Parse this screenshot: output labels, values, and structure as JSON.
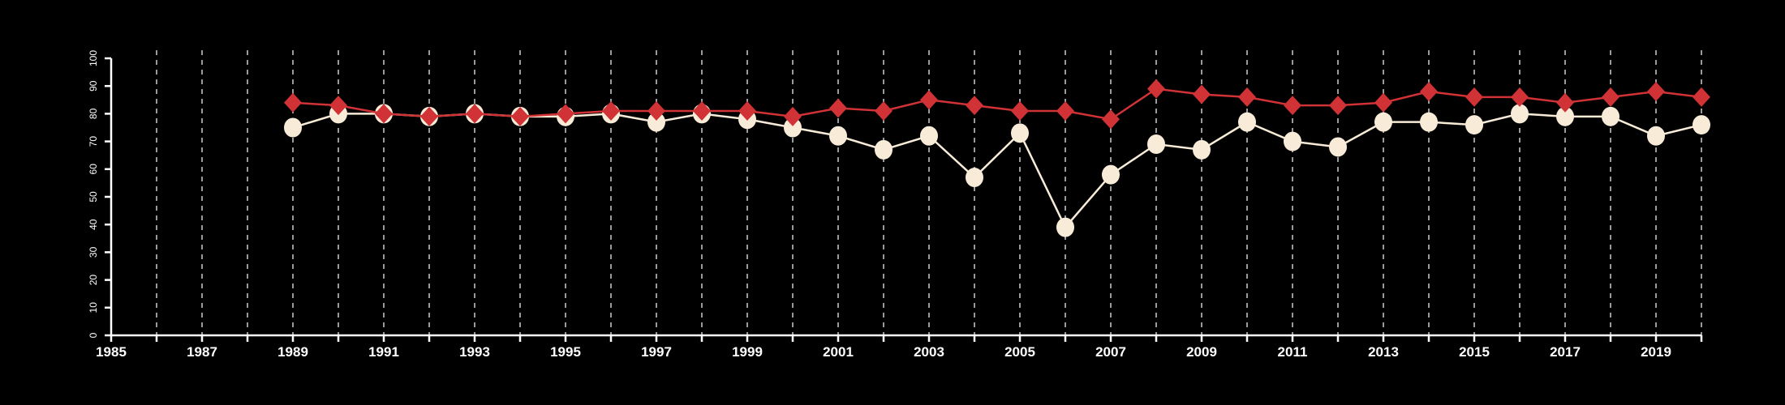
{
  "chart_data": {
    "type": "line",
    "title": "",
    "xlabel": "",
    "ylabel": "",
    "xlim": [
      1985,
      2020
    ],
    "ylim": [
      0,
      100
    ],
    "x_ticks": [
      1985,
      1986,
      1987,
      1988,
      1989,
      1990,
      1991,
      1992,
      1993,
      1994,
      1995,
      1996,
      1997,
      1998,
      1999,
      2000,
      2001,
      2002,
      2003,
      2004,
      2005,
      2006,
      2007,
      2008,
      2009,
      2010,
      2011,
      2012,
      2013,
      2014,
      2015,
      2016,
      2017,
      2018,
      2019,
      2020
    ],
    "x_tick_labels": [
      "1985",
      "1987",
      "1989",
      "1991",
      "1993",
      "1995",
      "1997",
      "1999",
      "2001",
      "2003",
      "2005",
      "2007",
      "2009",
      "2011",
      "2013",
      "2015",
      "2017",
      "2019"
    ],
    "y_tick_labels": [
      "0",
      "10",
      "20",
      "30",
      "40",
      "50",
      "60",
      "70",
      "80",
      "90",
      "100"
    ],
    "grid": "vertical dashed",
    "x": [
      1989,
      1990,
      1991,
      1992,
      1993,
      1994,
      1995,
      1996,
      1997,
      1998,
      1999,
      2000,
      2001,
      2002,
      2003,
      2004,
      2005,
      2006,
      2007,
      2008,
      2009,
      2010,
      2011,
      2012,
      2013,
      2014,
      2015,
      2016,
      2017,
      2018,
      2019,
      2020
    ],
    "series": [
      {
        "name": "series-red",
        "marker": "diamond",
        "color": "#d03236",
        "values": [
          84,
          83,
          80,
          79,
          80,
          79,
          80,
          81,
          81,
          81,
          81,
          79,
          82,
          81,
          85,
          83,
          81,
          81,
          78,
          89,
          87,
          86,
          83,
          83,
          84,
          88,
          86,
          86,
          84,
          86,
          88,
          86
        ]
      },
      {
        "name": "series-cream",
        "marker": "circle",
        "color": "#f8ecd8",
        "values": [
          75,
          80,
          80,
          79,
          80,
          79,
          79,
          80,
          77,
          80,
          78,
          75,
          72,
          67,
          72,
          57,
          73,
          39,
          58,
          69,
          67,
          77,
          70,
          68,
          77,
          77,
          76,
          80,
          79,
          79,
          72,
          76
        ]
      }
    ]
  }
}
